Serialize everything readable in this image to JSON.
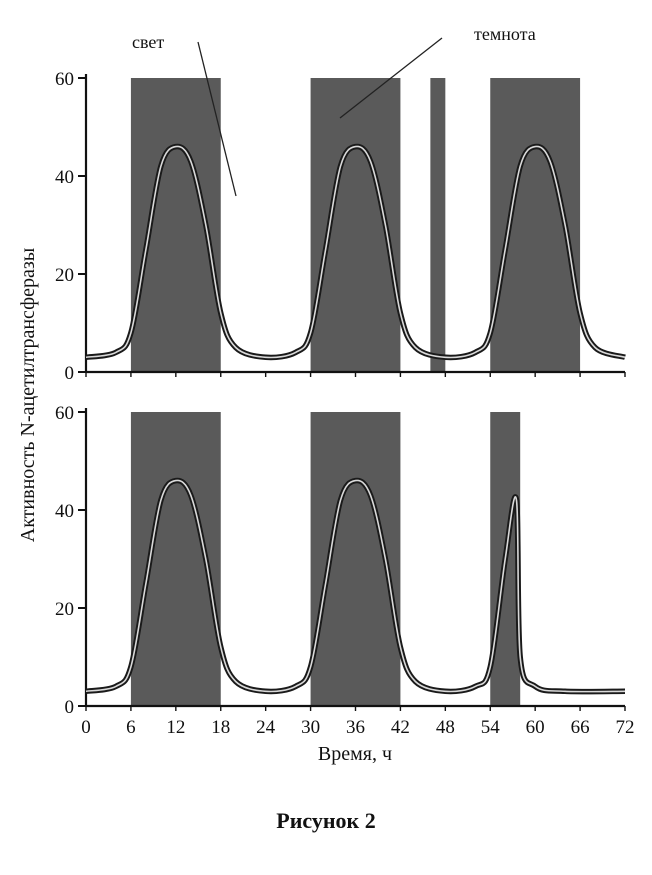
{
  "caption": "Рисунок 2",
  "chart_data": {
    "type": "line",
    "ylabel": "Активность N-ацетилтрансферазы",
    "xlabel": "Время, ч",
    "xlim": [
      0,
      72
    ],
    "x_ticks": [
      "0",
      "6",
      "12",
      "18",
      "24",
      "30",
      "36",
      "42",
      "48",
      "54",
      "60",
      "66",
      "72"
    ],
    "annotations": {
      "light": "свет",
      "dark": "темнота"
    },
    "panels": [
      {
        "ylim": [
          0,
          60
        ],
        "y_ticks": [
          "0",
          "20",
          "40",
          "60"
        ],
        "dark_periods": [
          [
            6,
            18
          ],
          [
            30,
            42
          ],
          [
            46,
            48
          ],
          [
            54,
            66
          ]
        ],
        "series": [
          {
            "x": [
              0,
              4,
              6,
              8,
              10,
              12,
              14,
              16,
              18,
              20,
              24,
              28,
              30,
              32,
              34,
              36,
              38,
              40,
              42,
              44,
              48,
              52,
              54,
              56,
              58,
              60,
              62,
              64,
              66,
              68,
              72
            ],
            "values": [
              3,
              4,
              8,
              25,
              42,
              46,
              43,
              30,
              12,
              5,
              3,
              4,
              8,
              25,
              42,
              46,
              43,
              30,
              12,
              5,
              3,
              4,
              8,
              25,
              42,
              46,
              43,
              30,
              12,
              5,
              3
            ]
          }
        ]
      },
      {
        "ylim": [
          0,
          60
        ],
        "y_ticks": [
          "0",
          "20",
          "40",
          "60"
        ],
        "dark_periods": [
          [
            6,
            18
          ],
          [
            30,
            42
          ],
          [
            54,
            58
          ]
        ],
        "series": [
          {
            "x": [
              0,
              4,
              6,
              8,
              10,
              12,
              14,
              16,
              18,
              20,
              24,
              28,
              30,
              32,
              34,
              36,
              38,
              40,
              42,
              44,
              48,
              52,
              54,
              56,
              57.5,
              58,
              60,
              64,
              72
            ],
            "values": [
              3,
              4,
              8,
              25,
              42,
              46,
              43,
              30,
              12,
              5,
              3,
              4,
              8,
              25,
              42,
              46,
              43,
              30,
              12,
              5,
              3,
              4,
              8,
              30,
              42,
              10,
              4,
              3,
              3
            ]
          }
        ]
      }
    ]
  }
}
